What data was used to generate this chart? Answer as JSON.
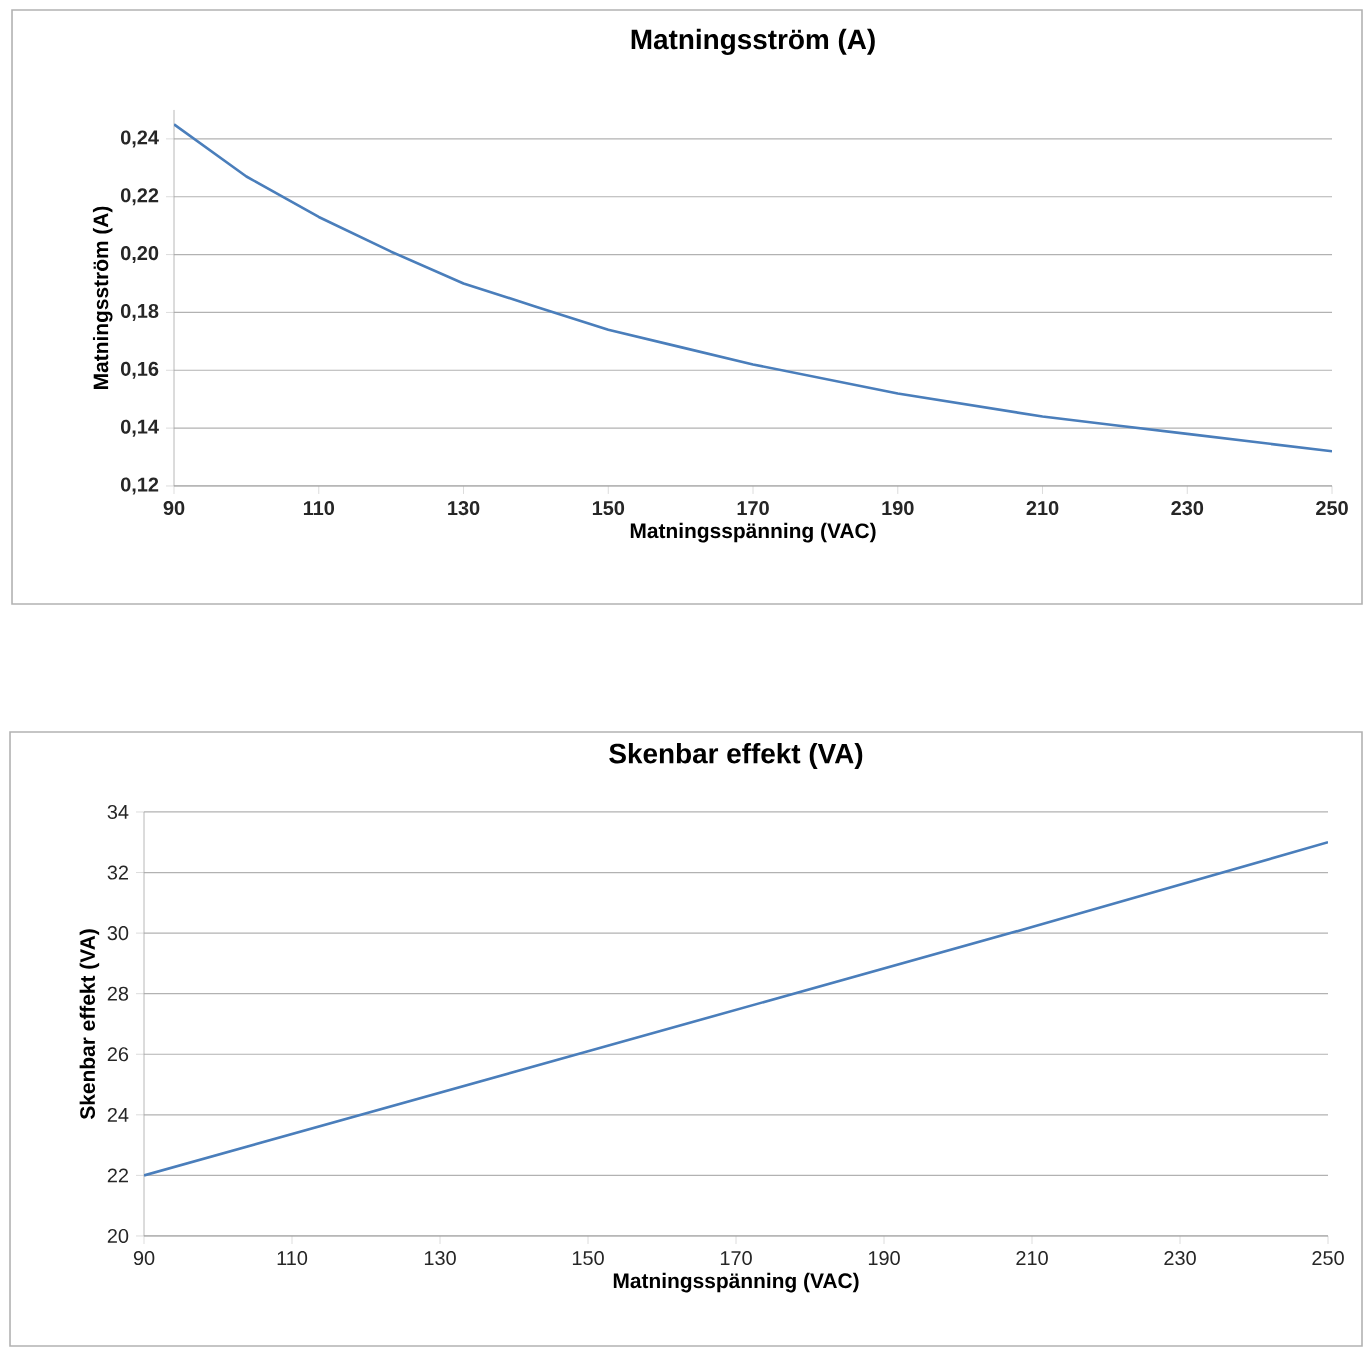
{
  "chart_data": [
    {
      "type": "line",
      "title": "Matningsström (A)",
      "xlabel": "Matningsspänning (VAC)",
      "ylabel": "Matningsström (A)",
      "x": [
        90,
        100,
        110,
        120,
        130,
        140,
        150,
        160,
        170,
        180,
        190,
        200,
        210,
        220,
        230,
        240,
        250
      ],
      "series": [
        {
          "color": "#4a7ebb",
          "values": [
            0.245,
            0.227,
            0.213,
            0.201,
            0.19,
            0.182,
            0.174,
            0.168,
            0.162,
            0.157,
            0.152,
            0.148,
            0.144,
            0.141,
            0.138,
            0.135,
            0.132
          ]
        }
      ],
      "xlim": [
        90,
        250
      ],
      "ylim": [
        0.12,
        0.25
      ],
      "xticks": [
        90,
        110,
        130,
        150,
        170,
        190,
        210,
        230,
        250
      ],
      "yticks": [
        {
          "value": 0.12,
          "label": "0,12"
        },
        {
          "value": 0.14,
          "label": "0,14"
        },
        {
          "value": 0.16,
          "label": "0,16"
        },
        {
          "value": 0.18,
          "label": "0,18"
        },
        {
          "value": 0.2,
          "label": "0,20"
        },
        {
          "value": 0.22,
          "label": "0,22"
        },
        {
          "value": 0.24,
          "label": "0,24"
        }
      ],
      "grid": "y"
    },
    {
      "type": "line",
      "title": "Skenbar effekt (VA)",
      "xlabel": "Matningsspänning (VAC)",
      "ylabel": "Skenbar effekt (VA)",
      "x": [
        90,
        150,
        210,
        250
      ],
      "series": [
        {
          "color": "#4a7ebb",
          "values": [
            22,
            26.1,
            30.2,
            33
          ]
        }
      ],
      "xlim": [
        90,
        250
      ],
      "ylim": [
        20,
        34
      ],
      "xticks": [
        90,
        110,
        130,
        150,
        170,
        190,
        210,
        230,
        250
      ],
      "yticks": [
        20,
        22,
        24,
        26,
        28,
        30,
        32,
        34
      ],
      "grid": "y"
    }
  ]
}
